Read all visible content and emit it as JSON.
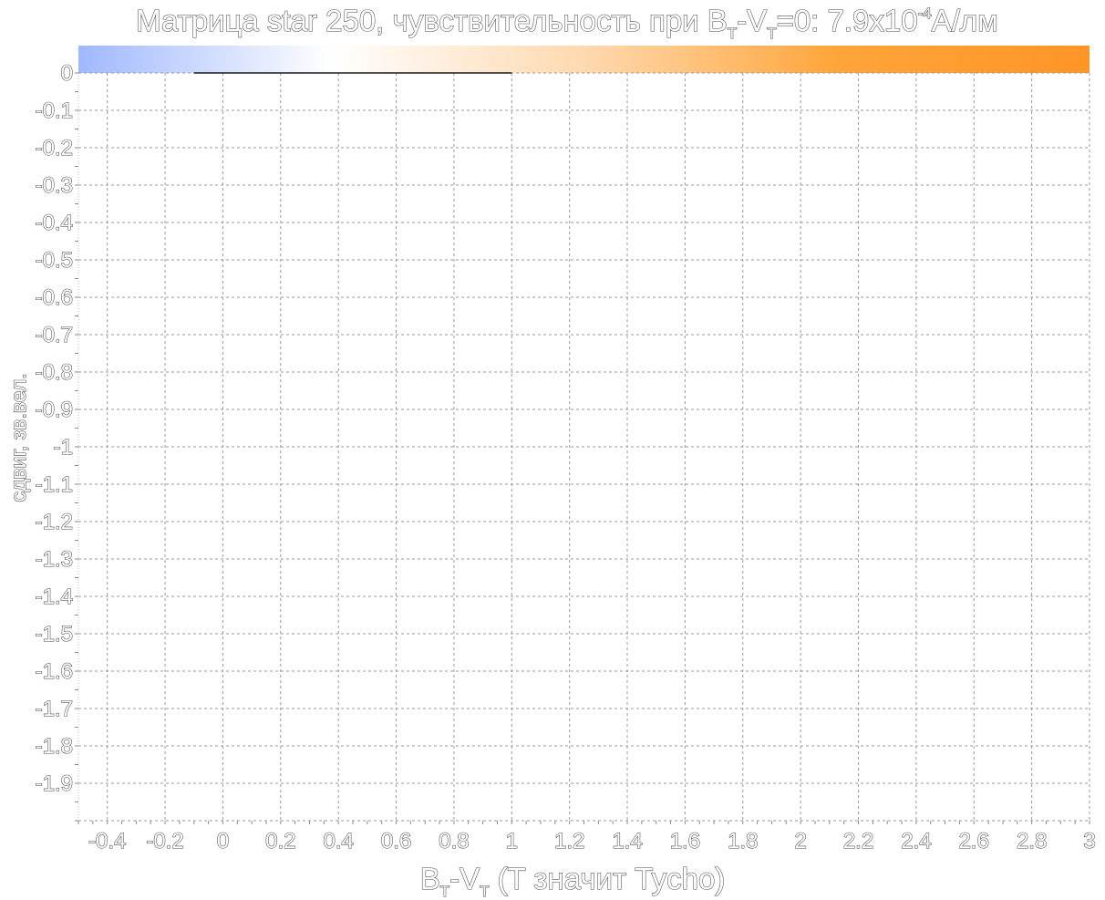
{
  "chart_data": {
    "type": "heatmap",
    "title_parts": {
      "prefix": "Матрица star 250, чувствительность при B",
      "sub1": "T",
      "mid": "-V",
      "sub2": "T",
      "value": "=0: 7.9x10",
      "exp": "-4",
      "unit": "A/лм"
    },
    "xlabel_parts": {
      "main": "B",
      "sub1": "T",
      "mid": "-V",
      "sub2": "T",
      "rest": " (T значит Tycho)"
    },
    "ylabel": "сдвиг, зв.вел.",
    "x_ticks": [
      "-0.4",
      "-0.2",
      "0",
      "0.2",
      "0.4",
      "0.6",
      "0.8",
      "1",
      "1.2",
      "1.4",
      "1.6",
      "1.8",
      "2",
      "2.2",
      "2.4",
      "2.6",
      "2.8",
      "3"
    ],
    "x_tick_values": [
      -0.4,
      -0.2,
      0,
      0.2,
      0.4,
      0.6,
      0.8,
      1,
      1.2,
      1.4,
      1.6,
      1.8,
      2,
      2.2,
      2.4,
      2.6,
      2.8,
      3
    ],
    "xlim": [
      -0.5,
      3
    ],
    "y_ticks": [
      "0",
      "-0.1",
      "-0.2",
      "-0.3",
      "-0.4",
      "-0.5",
      "-0.6",
      "-0.7",
      "-0.8",
      "-0.9",
      "-1",
      "-1.1",
      "-1.2",
      "-1.3",
      "-1.4",
      "-1.5",
      "-1.6",
      "-1.7",
      "-1.8",
      "-1.9"
    ],
    "y_tick_values": [
      0,
      -0.1,
      -0.2,
      -0.3,
      -0.4,
      -0.5,
      -0.6,
      -0.7,
      -0.8,
      -0.9,
      -1,
      -1.1,
      -1.2,
      -1.3,
      -1.4,
      -1.5,
      -1.6,
      -1.7,
      -1.8,
      -1.9
    ],
    "ylim": [
      -2,
      0
    ],
    "grid": true,
    "colorbar": {
      "placement": "top",
      "colors": [
        "#9fb8ff",
        "#ffffff",
        "#ffd9b0",
        "#ffa53a",
        "#ff9526"
      ]
    },
    "data_curve": {
      "color": "#1a1a1a",
      "x": [
        -0.1,
        0.4,
        1.0
      ],
      "y": [
        0,
        0,
        0
      ]
    }
  }
}
